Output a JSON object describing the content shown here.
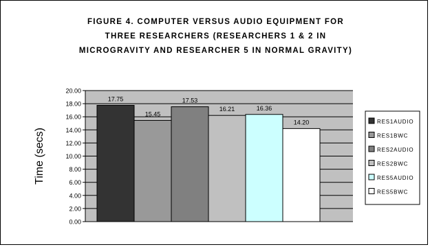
{
  "chart_data": {
    "type": "bar",
    "title_lines": [
      "FIGURE 4.  COMPUTER VERSUS AUDIO EQUIPMENT FOR",
      "THREE RESEARCHERS (RESEARCHERS 1 & 2 IN",
      "MICROGRAVITY AND RESEARCHER 5 IN NORMAL GRAVITY)"
    ],
    "ylabel": "Time (secs)",
    "ylim": [
      0,
      20
    ],
    "yticks": [
      "0.00",
      "2.00",
      "4.00",
      "6.00",
      "8.00",
      "10.00",
      "12.00",
      "14.00",
      "16.00",
      "18.00",
      "20.00"
    ],
    "grid": true,
    "legend_position": "right",
    "series": [
      {
        "name": "RES1AUDIO",
        "value": 17.75,
        "label": "17.75",
        "color": "#333333"
      },
      {
        "name": "RES1BWC",
        "value": 15.45,
        "label": "15.45",
        "color": "#999999"
      },
      {
        "name": "RES2AUDIO",
        "value": 17.53,
        "label": "17.53",
        "color": "#808080"
      },
      {
        "name": "RES2BWC",
        "value": 16.21,
        "label": "16.21",
        "color": "#c0c0c0"
      },
      {
        "name": "RES5AUDIO",
        "value": 16.36,
        "label": "16.36",
        "color": "#ccffff"
      },
      {
        "name": "RES5BWC",
        "value": 14.2,
        "label": "14.20",
        "color": "#ffffff"
      }
    ],
    "plot_background": "#c0c0c0"
  }
}
